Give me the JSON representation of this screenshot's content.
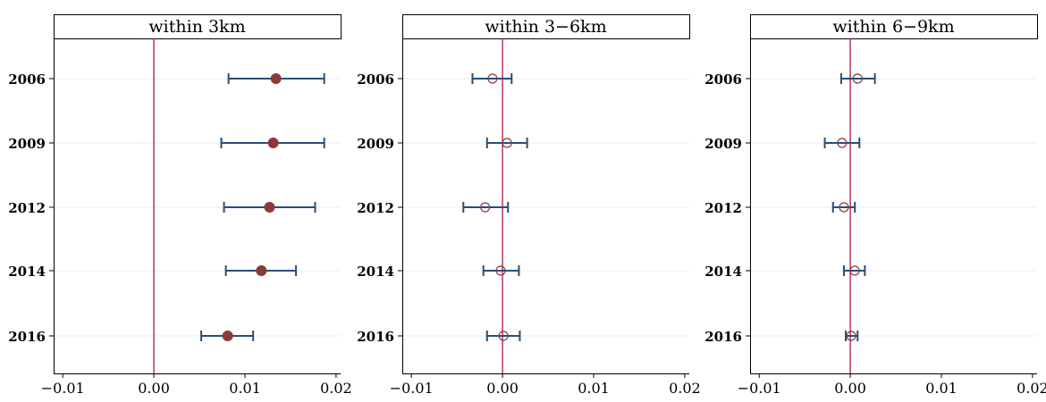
{
  "chart_data": [
    {
      "type": "scatter",
      "title": "within 3km",
      "marker": "filled",
      "xlim": [
        -0.011,
        0.0205
      ],
      "xticks": [
        -0.01,
        0.0,
        0.01,
        0.02
      ],
      "xtick_labels": [
        "−0.01",
        "0.00",
        "0.01",
        "0.02"
      ],
      "categories": [
        "2006",
        "2009",
        "2012",
        "2014",
        "2016"
      ],
      "estimate": [
        0.0134,
        0.0131,
        0.0127,
        0.0118,
        0.0081
      ],
      "ci_low": [
        0.0082,
        0.0074,
        0.0077,
        0.0079,
        0.0052
      ],
      "ci_high": [
        0.0187,
        0.0187,
        0.0177,
        0.0156,
        0.0109
      ],
      "reference_line_x": 0.0
    },
    {
      "type": "scatter",
      "title": "within 3−6km",
      "marker": "hollow",
      "xlim": [
        -0.011,
        0.0205
      ],
      "xticks": [
        -0.01,
        0.0,
        0.01,
        0.02
      ],
      "xtick_labels": [
        "−0.01",
        "0.00",
        "0.01",
        "0.02"
      ],
      "categories": [
        "2006",
        "2009",
        "2012",
        "2014",
        "2016"
      ],
      "estimate": [
        -0.0011,
        0.0005,
        -0.0019,
        -0.0002,
        0.0001
      ],
      "ci_low": [
        -0.0033,
        -0.0017,
        -0.0043,
        -0.0021,
        -0.0017
      ],
      "ci_high": [
        0.001,
        0.0027,
        0.0006,
        0.0018,
        0.0019
      ],
      "reference_line_x": 0.0
    },
    {
      "type": "scatter",
      "title": "within 6−9km",
      "marker": "hollow",
      "xlim": [
        -0.011,
        0.0205
      ],
      "xticks": [
        -0.01,
        0.0,
        0.01,
        0.02
      ],
      "xtick_labels": [
        "−0.01",
        "0.00",
        "0.01",
        "0.02"
      ],
      "categories": [
        "2006",
        "2009",
        "2012",
        "2014",
        "2016"
      ],
      "estimate": [
        0.0008,
        -0.0009,
        -0.0007,
        0.0005,
        0.0001
      ],
      "ci_low": [
        -0.001,
        -0.0028,
        -0.0019,
        -0.0007,
        -0.0005
      ],
      "ci_high": [
        0.0027,
        0.001,
        0.0005,
        0.0016,
        0.0008
      ],
      "reference_line_x": 0.0
    }
  ],
  "colors": {
    "marker": "#8b3a3a",
    "ci": "#2a4d7a",
    "reference": "#b0154f",
    "grid": "#e8eef3",
    "axis": "#000000"
  }
}
